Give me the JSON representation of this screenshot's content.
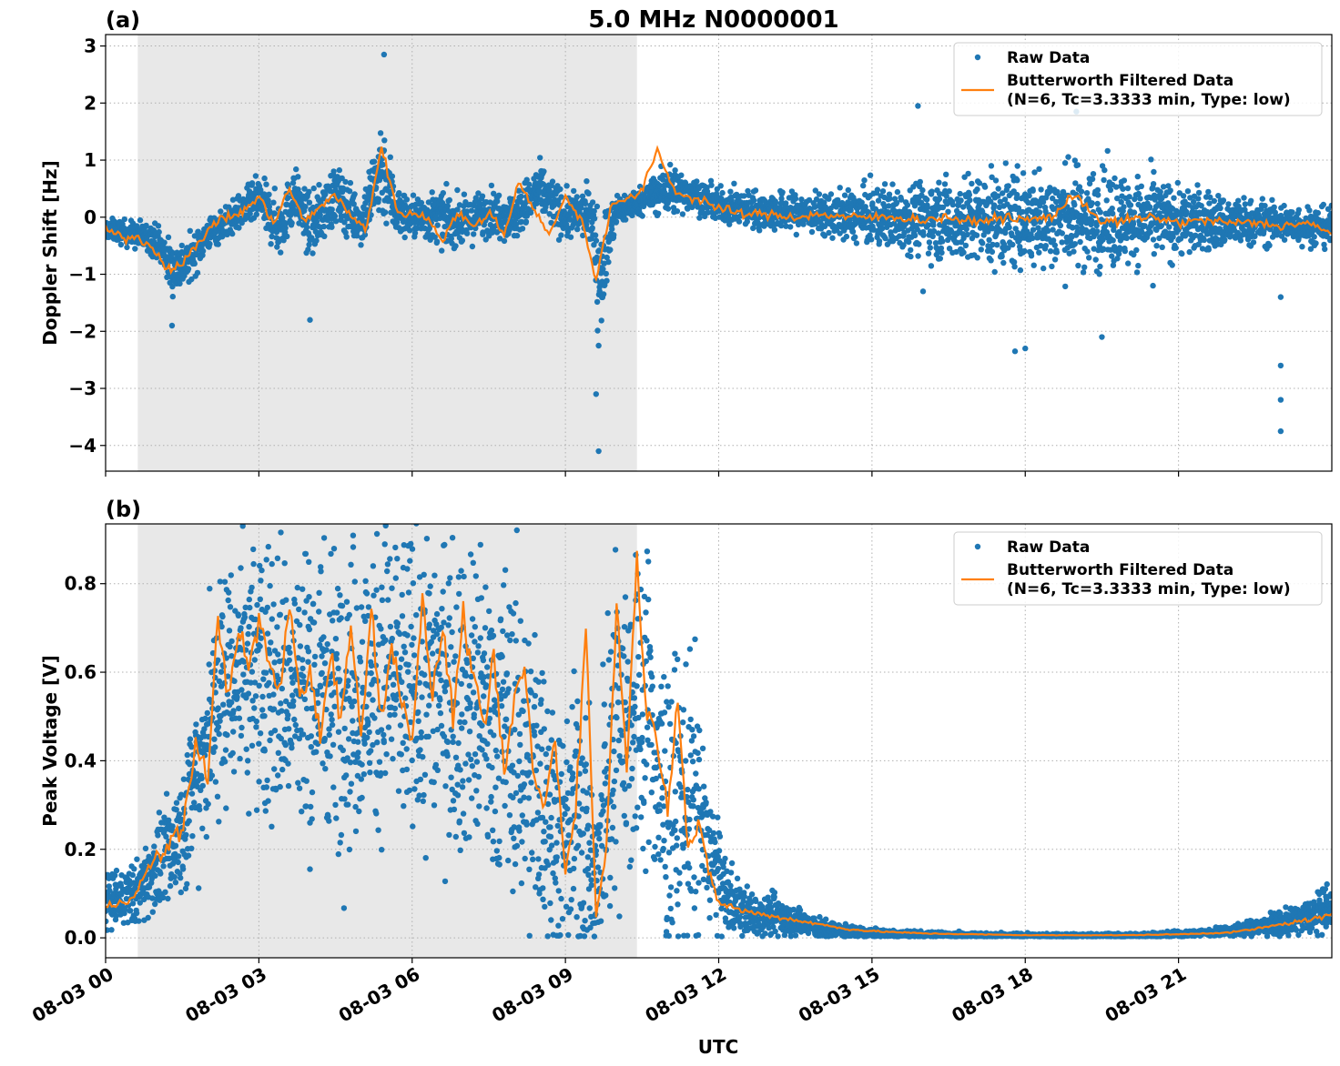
{
  "title": "5.0 MHz N0000001",
  "x_axis": {
    "label": "UTC",
    "tick_labels": [
      "08-03 00",
      "08-03 03",
      "08-03 06",
      "08-03 09",
      "08-03 12",
      "08-03 15",
      "08-03 18",
      "08-03 21"
    ],
    "tick_hours": [
      0,
      3,
      6,
      9,
      12,
      15,
      18,
      21
    ],
    "range_hours": [
      0,
      24
    ],
    "shaded_region_hours": [
      0.63,
      10.4
    ]
  },
  "colors": {
    "raw": "#1f77b4",
    "filtered": "#ff7f0e",
    "shade": "#e8e8e8",
    "grid": "#b0b0b0"
  },
  "legend": {
    "raw_label": "Raw Data",
    "filtered_label_line1": "Butterworth Filtered Data",
    "filtered_label_line2": "(N=6, Tc=3.3333 min, Type: low)"
  },
  "chart_data": [
    {
      "type": "scatter",
      "panel_label": "(a)",
      "ylabel": "Doppler Shift [Hz]",
      "ylim": [
        -4.45,
        3.2
      ],
      "y_ticks": [
        3,
        2,
        1,
        0,
        -1,
        -2,
        -3,
        -4
      ],
      "y_tick_labels": [
        "3",
        "2",
        "1",
        "0",
        "−1",
        "−2",
        "−3",
        "−4"
      ],
      "grid": true,
      "legend_position": "top-right",
      "series": [
        {
          "name": "Raw Data",
          "x_hours": [
            0,
            0.5,
            1.0,
            1.3,
            1.6,
            2.0,
            2.5,
            3.0,
            3.4,
            3.7,
            4.0,
            4.5,
            5.0,
            5.4,
            5.7,
            6.0,
            6.5,
            7.0,
            7.5,
            8.0,
            8.5,
            9.0,
            9.5,
            9.65,
            10.0,
            10.5,
            11.0,
            11.5,
            12.0,
            13.0,
            14.0,
            15.0,
            16.0,
            17.0,
            18.0,
            19.0,
            20.0,
            21.0,
            22.0,
            23.0,
            24.0
          ],
          "y_center": [
            -0.2,
            -0.3,
            -0.4,
            -0.9,
            -0.8,
            -0.3,
            0.0,
            0.3,
            -0.2,
            0.4,
            -0.2,
            0.4,
            -0.1,
            0.9,
            0.1,
            0.0,
            0.0,
            -0.1,
            0.1,
            0.0,
            0.5,
            0.0,
            0.1,
            -1.0,
            0.1,
            0.3,
            0.5,
            0.4,
            0.2,
            0.1,
            0.05,
            0.0,
            0.0,
            -0.05,
            -0.05,
            0.0,
            -0.05,
            -0.05,
            -0.1,
            -0.1,
            -0.2
          ],
          "y_spread": [
            0.15,
            0.2,
            0.25,
            0.4,
            0.35,
            0.25,
            0.25,
            0.35,
            0.45,
            0.4,
            0.45,
            0.45,
            0.35,
            0.8,
            0.4,
            0.3,
            0.4,
            0.35,
            0.35,
            0.35,
            0.4,
            0.35,
            0.35,
            1.0,
            0.25,
            0.2,
            0.4,
            0.25,
            0.25,
            0.3,
            0.3,
            0.45,
            0.55,
            0.7,
            0.75,
            0.8,
            0.7,
            0.55,
            0.4,
            0.3,
            0.3
          ],
          "outliers": [
            [
              1.3,
              -1.9
            ],
            [
              4.0,
              -1.8
            ],
            [
              5.45,
              2.85
            ],
            [
              9.65,
              -4.1
            ],
            [
              9.6,
              -3.1
            ],
            [
              15.9,
              1.95
            ],
            [
              17.8,
              -2.35
            ],
            [
              18.0,
              -2.3
            ],
            [
              19.0,
              1.85
            ],
            [
              19.5,
              -2.1
            ],
            [
              23.0,
              -3.75
            ],
            [
              23.0,
              -3.2
            ],
            [
              23.0,
              -2.6
            ],
            [
              23.0,
              -1.4
            ],
            [
              16.0,
              -1.3
            ],
            [
              20.5,
              -1.2
            ]
          ]
        },
        {
          "name": "Butterworth Filtered Data (N=6, Tc=3.3333 min, Type: low)",
          "x_hours": [
            0,
            0.3,
            0.6,
            0.9,
            1.2,
            1.5,
            1.8,
            2.1,
            2.4,
            2.7,
            3.0,
            3.3,
            3.6,
            3.9,
            4.2,
            4.5,
            4.8,
            5.1,
            5.4,
            5.7,
            6.0,
            6.3,
            6.6,
            6.9,
            7.2,
            7.5,
            7.8,
            8.1,
            8.4,
            8.7,
            9.0,
            9.3,
            9.6,
            9.9,
            10.2,
            10.5,
            10.8,
            11.1,
            11.4,
            11.7,
            12.0,
            12.5,
            13.0,
            13.5,
            14.0,
            14.5,
            15.0,
            15.5,
            16.0,
            16.5,
            17.0,
            17.5,
            18.0,
            18.5,
            19.0,
            19.5,
            20.0,
            20.5,
            21.0,
            21.5,
            22.0,
            22.5,
            23.0,
            23.5,
            24.0
          ],
          "y": [
            -0.2,
            -0.35,
            -0.35,
            -0.5,
            -0.9,
            -0.8,
            -0.5,
            -0.1,
            0.0,
            0.1,
            0.35,
            -0.1,
            0.5,
            -0.1,
            0.2,
            0.4,
            0.0,
            -0.2,
            1.25,
            0.1,
            0.05,
            0.0,
            -0.4,
            0.1,
            -0.2,
            0.1,
            -0.3,
            0.65,
            0.1,
            -0.3,
            0.35,
            0.0,
            -1.1,
            0.25,
            0.3,
            0.45,
            1.2,
            0.5,
            0.35,
            0.3,
            0.15,
            0.05,
            0.05,
            0.0,
            0.05,
            0.0,
            0.0,
            0.0,
            -0.05,
            0.0,
            -0.1,
            0.0,
            -0.05,
            0.0,
            0.4,
            -0.1,
            -0.05,
            0.0,
            -0.1,
            -0.05,
            -0.1,
            -0.1,
            -0.15,
            -0.1,
            -0.3
          ]
        }
      ]
    },
    {
      "type": "scatter",
      "panel_label": "(b)",
      "ylabel": "Peak Voltage [V]",
      "ylim": [
        -0.045,
        0.935
      ],
      "y_ticks": [
        0.8,
        0.6,
        0.4,
        0.2,
        0.0
      ],
      "y_tick_labels": [
        "0.8",
        "0.6",
        "0.4",
        "0.2",
        "0.0"
      ],
      "grid": true,
      "legend_position": "top-right",
      "series": [
        {
          "name": "Raw Data",
          "x_hours": [
            0,
            0.6,
            0.9,
            1.2,
            1.5,
            1.8,
            2.1,
            2.4,
            2.7,
            3.0,
            3.5,
            4.0,
            4.5,
            5.0,
            5.5,
            6.0,
            6.5,
            7.0,
            7.5,
            8.0,
            8.5,
            9.0,
            9.3,
            9.6,
            9.8,
            10.0,
            10.3,
            10.6,
            10.9,
            11.2,
            11.5,
            11.8,
            12.1,
            12.5,
            13.0,
            13.5,
            14.0,
            14.5,
            15.0,
            16.0,
            18.0,
            20.0,
            21.0,
            22.0,
            23.0,
            23.5,
            24.0
          ],
          "y_center": [
            0.08,
            0.1,
            0.15,
            0.18,
            0.25,
            0.38,
            0.5,
            0.6,
            0.62,
            0.6,
            0.58,
            0.55,
            0.58,
            0.55,
            0.6,
            0.55,
            0.6,
            0.55,
            0.5,
            0.45,
            0.35,
            0.2,
            0.3,
            0.1,
            0.35,
            0.55,
            0.5,
            0.55,
            0.3,
            0.3,
            0.3,
            0.2,
            0.1,
            0.06,
            0.05,
            0.04,
            0.02,
            0.015,
            0.01,
            0.007,
            0.005,
            0.005,
            0.008,
            0.015,
            0.03,
            0.045,
            0.07
          ],
          "y_spread": [
            0.05,
            0.06,
            0.08,
            0.1,
            0.12,
            0.18,
            0.22,
            0.25,
            0.25,
            0.28,
            0.28,
            0.3,
            0.3,
            0.3,
            0.3,
            0.3,
            0.3,
            0.32,
            0.3,
            0.32,
            0.3,
            0.2,
            0.3,
            0.15,
            0.3,
            0.32,
            0.32,
            0.3,
            0.3,
            0.3,
            0.28,
            0.15,
            0.08,
            0.05,
            0.04,
            0.03,
            0.02,
            0.012,
            0.01,
            0.006,
            0.004,
            0.004,
            0.006,
            0.01,
            0.025,
            0.03,
            0.05
          ],
          "outliers": []
        },
        {
          "name": "Butterworth Filtered Data (N=6, Tc=3.3333 min, Type: low)",
          "x_hours": [
            0,
            0.3,
            0.6,
            0.9,
            1.2,
            1.5,
            1.8,
            2.0,
            2.2,
            2.4,
            2.6,
            2.8,
            3.0,
            3.2,
            3.4,
            3.6,
            3.8,
            4.0,
            4.2,
            4.4,
            4.6,
            4.8,
            5.0,
            5.2,
            5.4,
            5.6,
            5.8,
            6.0,
            6.2,
            6.4,
            6.6,
            6.8,
            7.0,
            7.2,
            7.4,
            7.6,
            7.8,
            8.0,
            8.2,
            8.4,
            8.6,
            8.8,
            9.0,
            9.2,
            9.4,
            9.6,
            9.8,
            10.0,
            10.2,
            10.4,
            10.6,
            10.8,
            11.0,
            11.2,
            11.4,
            11.6,
            11.8,
            12.0,
            12.5,
            13.0,
            13.5,
            14.0,
            14.5,
            15.0,
            16.0,
            17.0,
            18.0,
            19.0,
            20.0,
            21.0,
            22.0,
            22.5,
            23.0,
            23.5,
            24.0
          ],
          "y": [
            0.07,
            0.08,
            0.1,
            0.17,
            0.2,
            0.25,
            0.45,
            0.35,
            0.72,
            0.55,
            0.7,
            0.6,
            0.72,
            0.62,
            0.55,
            0.75,
            0.55,
            0.6,
            0.45,
            0.65,
            0.5,
            0.7,
            0.45,
            0.75,
            0.5,
            0.65,
            0.55,
            0.45,
            0.75,
            0.55,
            0.7,
            0.5,
            0.72,
            0.6,
            0.45,
            0.65,
            0.35,
            0.55,
            0.6,
            0.35,
            0.3,
            0.45,
            0.15,
            0.3,
            0.7,
            0.05,
            0.2,
            0.75,
            0.4,
            0.85,
            0.5,
            0.45,
            0.3,
            0.55,
            0.2,
            0.25,
            0.15,
            0.08,
            0.06,
            0.05,
            0.04,
            0.03,
            0.02,
            0.015,
            0.01,
            0.008,
            0.006,
            0.006,
            0.006,
            0.008,
            0.012,
            0.02,
            0.03,
            0.04,
            0.05
          ]
        }
      ]
    }
  ]
}
